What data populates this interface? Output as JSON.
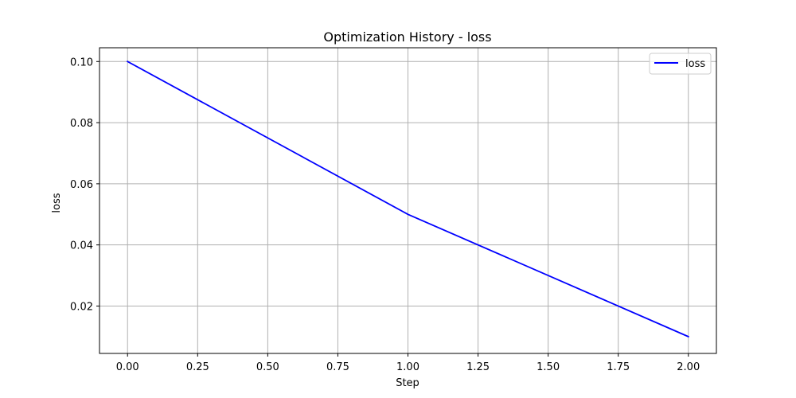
{
  "chart_data": {
    "type": "line",
    "title": "Optimization History - loss",
    "xlabel": "Step",
    "ylabel": "loss",
    "x": [
      0,
      1,
      2
    ],
    "series": [
      {
        "name": "loss",
        "values": [
          0.1,
          0.05,
          0.01
        ],
        "color": "#0000ff"
      }
    ],
    "xlim": [
      -0.1,
      2.1
    ],
    "ylim": [
      0.0045,
      0.1045
    ],
    "xticks": [
      0.0,
      0.25,
      0.5,
      0.75,
      1.0,
      1.25,
      1.5,
      1.75,
      2.0
    ],
    "xtick_labels": [
      "0.00",
      "0.25",
      "0.50",
      "0.75",
      "1.00",
      "1.25",
      "1.50",
      "1.75",
      "2.00"
    ],
    "yticks": [
      0.02,
      0.04,
      0.06,
      0.08,
      0.1
    ],
    "ytick_labels": [
      "0.02",
      "0.04",
      "0.06",
      "0.08",
      "0.10"
    ],
    "grid": true,
    "legend_position": "top-right",
    "colors": {
      "grid": "#b0b0b0",
      "axes": "#000000",
      "background": "#ffffff"
    }
  }
}
